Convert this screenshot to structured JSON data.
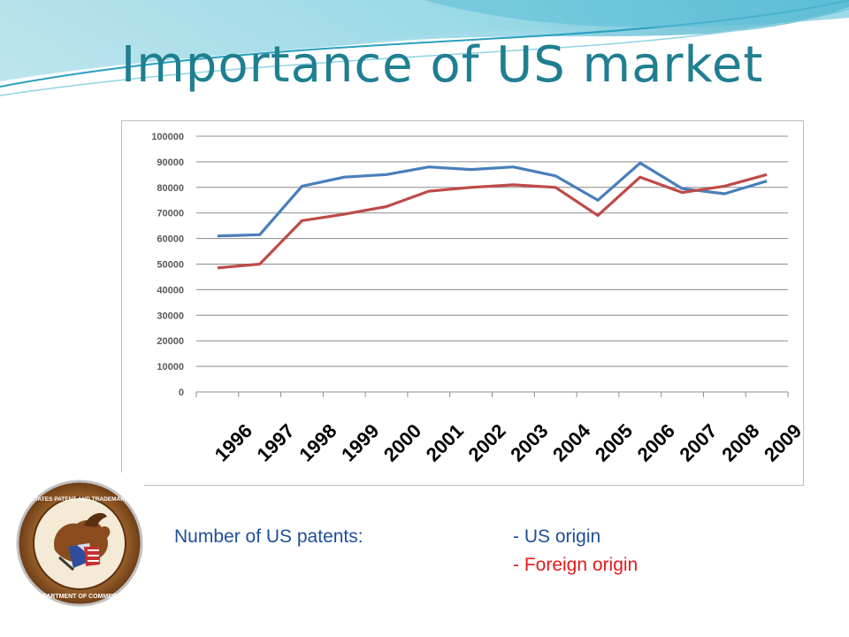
{
  "slide": {
    "title": "Importance of US market",
    "caption": "Number  of US patents:",
    "legend_us": "- US origin",
    "legend_foreign": "- Foreign origin",
    "seal_text_top": "UNITED STATES PATENT AND TRADEMARK OFFICE",
    "seal_text_bottom": "DEPARTMENT OF COMMERCE"
  },
  "colors": {
    "title": "#1f7f90",
    "us_origin": "#4a7ebb",
    "foreign_origin": "#be4b48",
    "caption_text": "#1f4e99",
    "legend_foreign_text": "#e31a1c"
  },
  "chart_data": {
    "type": "line",
    "x": [
      "1996",
      "1997",
      "1998",
      "1999",
      "2000",
      "2001",
      "2002",
      "2003",
      "2004",
      "2005",
      "2006",
      "2007",
      "2008",
      "2009"
    ],
    "series": [
      {
        "name": "US origin",
        "values": [
          61000,
          61500,
          80500,
          84000,
          85000,
          88000,
          87000,
          88000,
          84500,
          75000,
          89500,
          79500,
          77500,
          82500
        ]
      },
      {
        "name": "Foreign origin",
        "values": [
          48500,
          50000,
          67000,
          69500,
          72500,
          78500,
          80000,
          81000,
          80000,
          69000,
          84000,
          78000,
          80500,
          85000
        ]
      }
    ],
    "yticks": [
      "0",
      "10000",
      "20000",
      "30000",
      "40000",
      "50000",
      "60000",
      "70000",
      "80000",
      "90000",
      "100000"
    ],
    "ylim": [
      0,
      100000
    ],
    "grid": true,
    "title": "",
    "xlabel": "",
    "ylabel": ""
  }
}
